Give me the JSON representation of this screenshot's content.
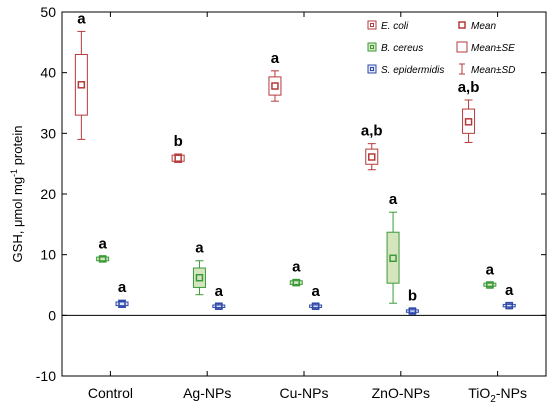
{
  "chart_data": {
    "type": "box",
    "categories": [
      "Control",
      "Ag-NPs",
      "Cu-NPs",
      "ZnO-NPs",
      "TiO2-NPs"
    ],
    "category_labels": [
      {
        "text": "Control"
      },
      {
        "text": "Ag-NPs"
      },
      {
        "text": "Cu-NPs"
      },
      {
        "text": "ZnO-NPs"
      },
      {
        "text": "TiO",
        "sub": "2",
        "tail": "-NPs"
      }
    ],
    "ylabel": {
      "text": "GSH, μmol mg",
      "sup": "-1",
      "tail": " protein"
    },
    "xlabel": "",
    "ylim": [
      -10,
      50
    ],
    "yticks": [
      -10,
      0,
      10,
      20,
      30,
      40,
      50
    ],
    "zero_line": true,
    "series": [
      {
        "name": "E. coli",
        "color": "#b53a3a",
        "fill": "#ffffff",
        "points": [
          {
            "mean": 38.0,
            "se_low": 33.0,
            "se_high": 43.0,
            "sd_low": 29.0,
            "sd_high": 46.8,
            "letter": "a"
          },
          {
            "mean": 25.9,
            "se_low": 25.4,
            "se_high": 26.4,
            "sd_low": 25.2,
            "sd_high": 26.6,
            "letter": "b"
          },
          {
            "mean": 37.8,
            "se_low": 36.3,
            "se_high": 39.3,
            "sd_low": 35.3,
            "sd_high": 40.3,
            "letter": "a"
          },
          {
            "mean": 26.1,
            "se_low": 24.9,
            "se_high": 27.4,
            "sd_low": 24.0,
            "sd_high": 28.3,
            "letter": "a,b"
          },
          {
            "mean": 31.9,
            "se_low": 30.0,
            "se_high": 34.0,
            "sd_low": 28.5,
            "sd_high": 35.5,
            "letter": "a,b"
          }
        ]
      },
      {
        "name": "B. cereus",
        "color": "#3a9a3a",
        "fill": "#d5e6bf",
        "points": [
          {
            "mean": 9.3,
            "se_low": 9.0,
            "se_high": 9.6,
            "sd_low": 8.9,
            "sd_high": 9.7,
            "letter": "a"
          },
          {
            "mean": 6.2,
            "se_low": 4.6,
            "se_high": 7.8,
            "sd_low": 3.4,
            "sd_high": 9.0,
            "letter": "a"
          },
          {
            "mean": 5.4,
            "se_low": 5.1,
            "se_high": 5.7,
            "sd_low": 4.9,
            "sd_high": 5.9,
            "letter": "a"
          },
          {
            "mean": 9.4,
            "se_low": 5.3,
            "se_high": 13.7,
            "sd_low": 2.0,
            "sd_high": 17.0,
            "letter": "a"
          },
          {
            "mean": 5.0,
            "se_low": 4.8,
            "se_high": 5.3,
            "sd_low": 4.7,
            "sd_high": 5.4,
            "letter": "a"
          }
        ]
      },
      {
        "name": "S. epidermidis",
        "color": "#2f49a8",
        "fill": "#dfe6f7",
        "points": [
          {
            "mean": 1.9,
            "se_low": 1.6,
            "se_high": 2.2,
            "sd_low": 1.3,
            "sd_high": 2.5,
            "letter": "a"
          },
          {
            "mean": 1.5,
            "se_low": 1.3,
            "se_high": 1.7,
            "sd_low": 1.1,
            "sd_high": 1.9,
            "letter": "a"
          },
          {
            "mean": 1.5,
            "se_low": 1.3,
            "se_high": 1.7,
            "sd_low": 1.1,
            "sd_high": 1.9,
            "letter": "a"
          },
          {
            "mean": 0.7,
            "se_low": 0.5,
            "se_high": 0.9,
            "sd_low": 0.3,
            "sd_high": 1.1,
            "letter": "b"
          },
          {
            "mean": 1.6,
            "se_low": 1.4,
            "se_high": 1.8,
            "sd_low": 1.2,
            "sd_high": 2.0,
            "letter": "a"
          }
        ]
      }
    ],
    "legend": {
      "placement": "top-right",
      "series_entries": [
        "E. coli",
        "B. cereus",
        "S. epidermidis"
      ],
      "stat_entries": [
        "Mean",
        "Mean±SE",
        "Mean±SD"
      ],
      "stat_color": "#b53a3a"
    }
  }
}
